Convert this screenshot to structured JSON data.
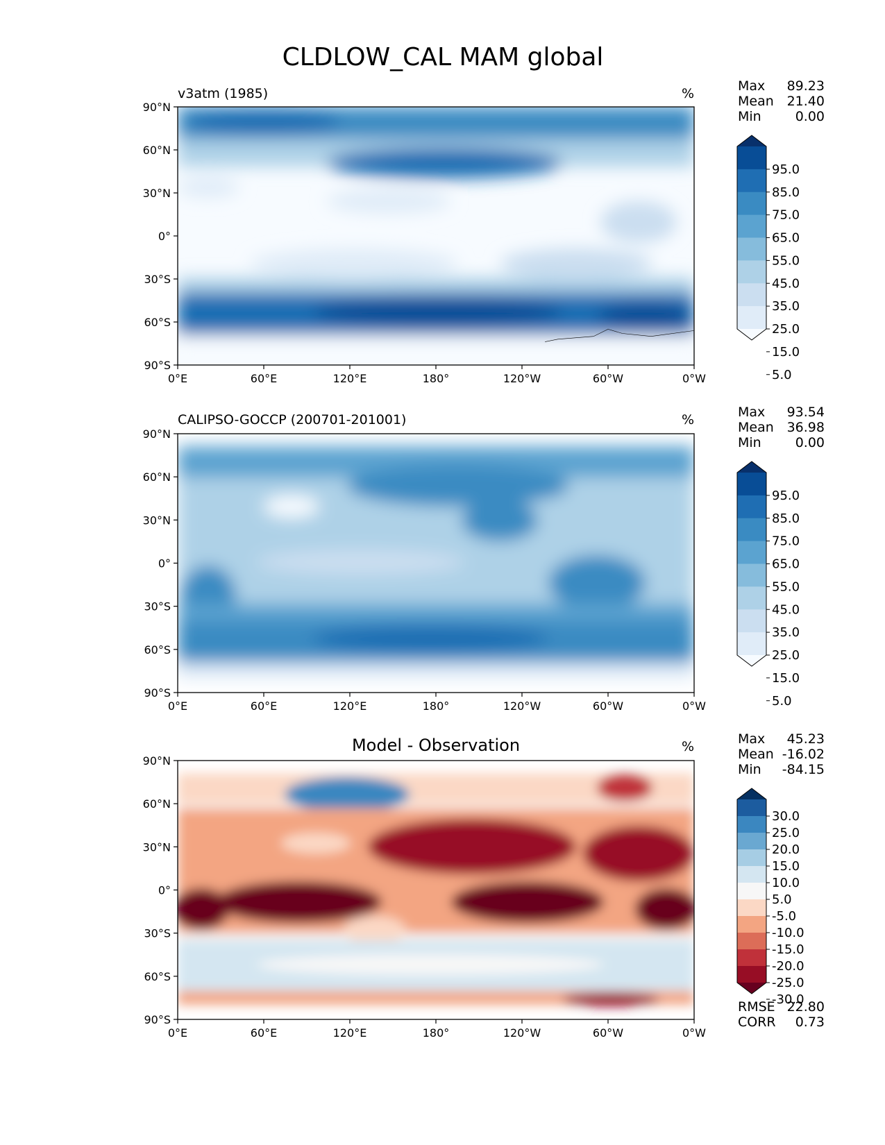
{
  "title": "CLDLOW_CAL MAM global",
  "chart_data": [
    {
      "type": "heatmap",
      "title": "v3atm (1985)",
      "units": "%",
      "x_ticks": [
        "0°E",
        "60°E",
        "120°E",
        "180°",
        "120°W",
        "60°W",
        "0°W"
      ],
      "y_ticks": [
        "90°N",
        "60°N",
        "30°N",
        "0°",
        "30°S",
        "60°S",
        "90°S"
      ],
      "xlim": [
        0,
        360
      ],
      "ylim": [
        -90,
        90
      ],
      "stats": [
        {
          "label": "Max",
          "value": "89.23"
        },
        {
          "label": "Mean",
          "value": "21.40"
        },
        {
          "label": "Min",
          "value": "0.00"
        }
      ],
      "colorbar": {
        "labels": [
          "95.0",
          "85.0",
          "75.0",
          "65.0",
          "55.0",
          "45.0",
          "35.0",
          "25.0",
          "15.0",
          "5.0"
        ],
        "colors": [
          "#08306b",
          "#084d96",
          "#1f6eb3",
          "#3a8bc2",
          "#5ba3d0",
          "#86bcdc",
          "#aed1e7",
          "#cbdef0",
          "#e0ecf8",
          "#f7fbff"
        ]
      }
    },
    {
      "type": "heatmap",
      "title": "CALIPSO-GOCCP (200701-201001)",
      "units": "%",
      "x_ticks": [
        "0°E",
        "60°E",
        "120°E",
        "180°",
        "120°W",
        "60°W",
        "0°W"
      ],
      "y_ticks": [
        "90°N",
        "60°N",
        "30°N",
        "0°",
        "30°S",
        "60°S",
        "90°S"
      ],
      "xlim": [
        0,
        360
      ],
      "ylim": [
        -90,
        90
      ],
      "stats": [
        {
          "label": "Max",
          "value": "93.54"
        },
        {
          "label": "Mean",
          "value": "36.98"
        },
        {
          "label": "Min",
          "value": "0.00"
        }
      ],
      "colorbar": {
        "labels": [
          "95.0",
          "85.0",
          "75.0",
          "65.0",
          "55.0",
          "45.0",
          "35.0",
          "25.0",
          "15.0",
          "5.0"
        ],
        "colors": [
          "#08306b",
          "#084d96",
          "#1f6eb3",
          "#3a8bc2",
          "#5ba3d0",
          "#86bcdc",
          "#aed1e7",
          "#cbdef0",
          "#e0ecf8",
          "#f7fbff"
        ]
      }
    },
    {
      "type": "heatmap",
      "title": "Model - Observation",
      "units": "%",
      "x_ticks": [
        "0°E",
        "60°E",
        "120°E",
        "180°",
        "120°W",
        "60°W",
        "0°W"
      ],
      "y_ticks": [
        "90°N",
        "60°N",
        "30°N",
        "0°",
        "30°S",
        "60°S",
        "90°S"
      ],
      "xlim": [
        0,
        360
      ],
      "ylim": [
        -90,
        90
      ],
      "stats": [
        {
          "label": "Max",
          "value": "45.23"
        },
        {
          "label": "Mean",
          "value": "-16.02"
        },
        {
          "label": "Min",
          "value": "-84.15"
        }
      ],
      "extra_stats": [
        {
          "label": "RMSE",
          "value": "22.80"
        },
        {
          "label": "CORR",
          "value": "0.73"
        }
      ],
      "colorbar": {
        "labels": [
          "30.0",
          "25.0",
          "20.0",
          "15.0",
          "10.0",
          "5.0",
          "-5.0",
          "-10.0",
          "-15.0",
          "-20.0",
          "-25.0",
          "-30.0"
        ],
        "colors": [
          "#053061",
          "#1c5c9f",
          "#3b87c0",
          "#6aa8d1",
          "#a6cde4",
          "#d4e6f1",
          "#f7f7f7",
          "#fbd8c5",
          "#f3a582",
          "#dc6d58",
          "#c0313a",
          "#970d25",
          "#67001f"
        ]
      }
    }
  ]
}
